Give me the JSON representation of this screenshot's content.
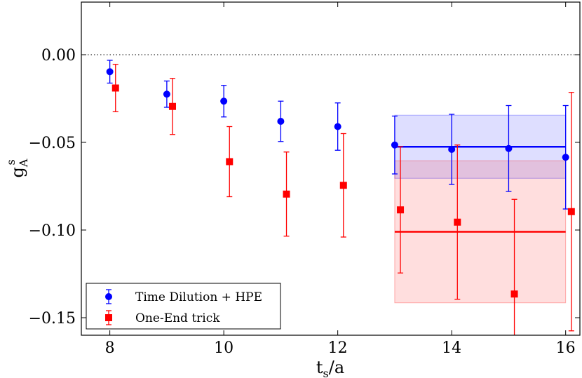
{
  "chart_data": {
    "type": "scatter",
    "xlabel": {
      "main": "t",
      "sub": "s",
      "rest": "/a"
    },
    "ylabel": {
      "main": "g",
      "sub": "A",
      "sup": "s"
    },
    "xlim": [
      7.5,
      16.25
    ],
    "ylim": [
      -0.16,
      0.03
    ],
    "xticks": [
      8,
      10,
      12,
      14,
      16
    ],
    "xtick_labels": [
      "8",
      "10",
      "12",
      "14",
      "16"
    ],
    "yticks": [
      0.0,
      -0.05,
      -0.1,
      -0.15
    ],
    "ytick_labels": [
      "0.00",
      "−0.05",
      "−0.10",
      "−0.15"
    ],
    "reference_line": {
      "y": 0.0,
      "style": "dotted",
      "color": "#000000"
    },
    "legend_position": "lower-left",
    "series": [
      {
        "name": "Time Dilution + HPE",
        "color": "#0000ff",
        "marker": "circle",
        "x": [
          8,
          9,
          10,
          11,
          12,
          13,
          14,
          15,
          16
        ],
        "y": [
          -0.0097,
          -0.0225,
          -0.0265,
          -0.038,
          -0.041,
          -0.0515,
          -0.054,
          -0.0535,
          -0.0585
        ],
        "err": [
          0.0065,
          0.0075,
          0.009,
          0.0115,
          0.0135,
          0.0165,
          0.02,
          0.0245,
          0.0295
        ],
        "fit": {
          "x_from": 13,
          "x_to": 16,
          "value": -0.0525,
          "err": 0.018
        }
      },
      {
        "name": "One-End trick",
        "color": "#ff0000",
        "marker": "square",
        "x": [
          8.1,
          9.1,
          10.1,
          11.1,
          12.1,
          13.1,
          14.1,
          15.1,
          16.1
        ],
        "y": [
          -0.019,
          -0.0295,
          -0.061,
          -0.0795,
          -0.0745,
          -0.0885,
          -0.0955,
          -0.1365,
          -0.0895
        ],
        "err": [
          0.0135,
          0.016,
          0.02,
          0.024,
          0.0295,
          0.036,
          0.044,
          0.054,
          0.068
        ],
        "fit": {
          "x_from": 13,
          "x_to": 16,
          "value": -0.101,
          "err": 0.0405
        }
      }
    ]
  }
}
